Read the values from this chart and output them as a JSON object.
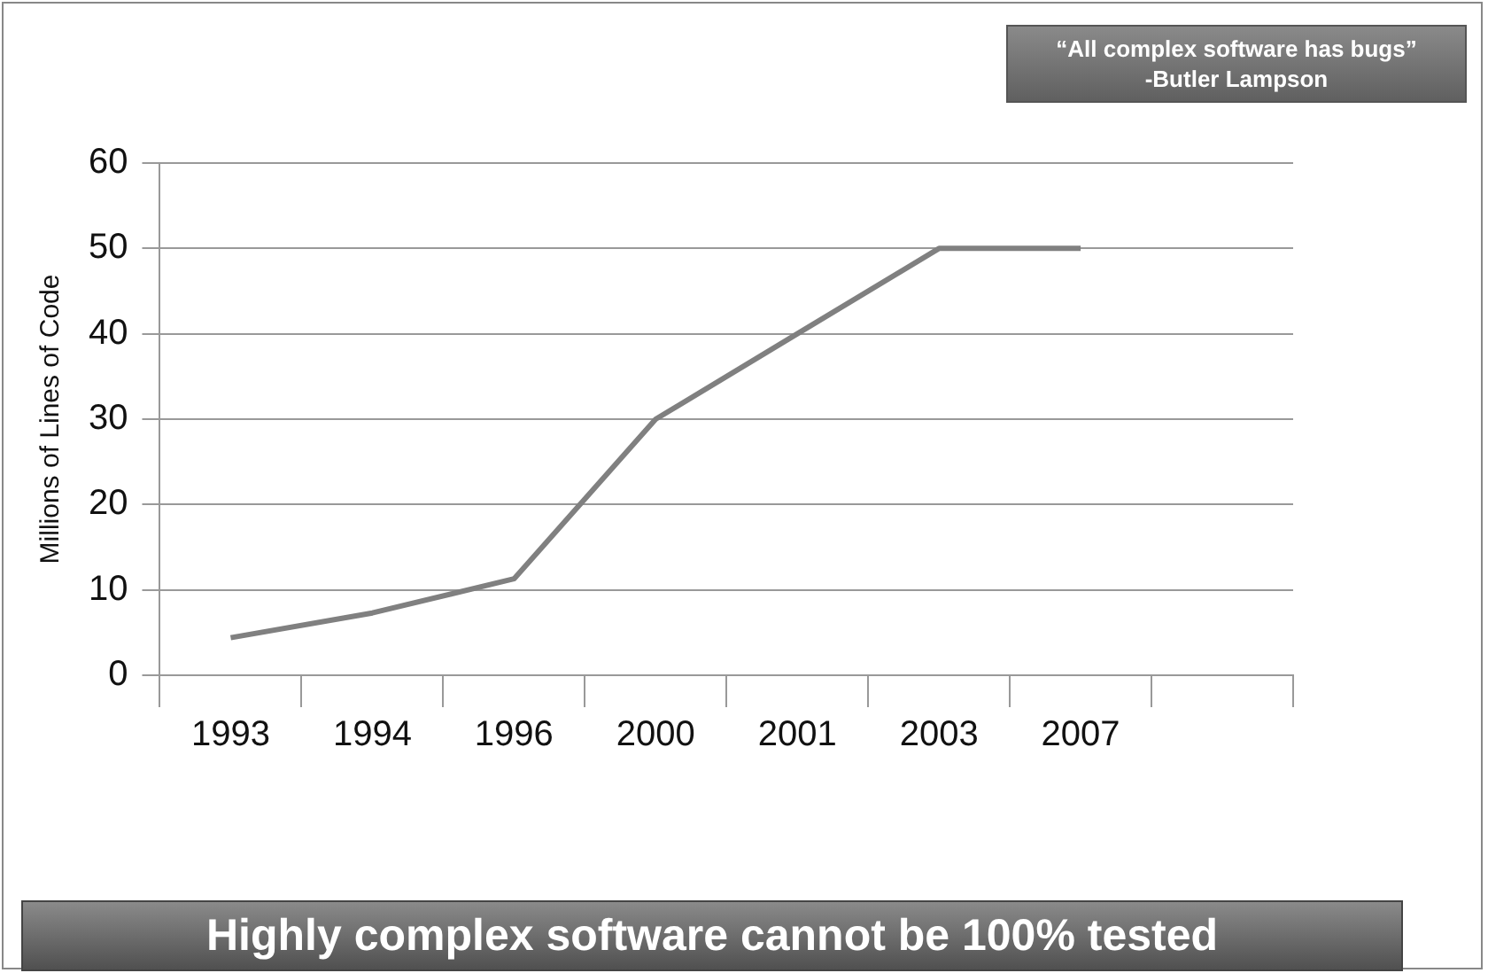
{
  "chart_data": {
    "type": "line",
    "ylabel": "Millions of Lines of Code",
    "categories": [
      "1993",
      "1994",
      "1996",
      "2000",
      "2001",
      "2003",
      "2007",
      null
    ],
    "values": [
      4.4,
      7.3,
      11.3,
      30,
      40,
      50,
      50,
      null
    ],
    "color": "#808080",
    "ylim": [
      0,
      60
    ],
    "yticks": [
      0,
      10,
      20,
      30,
      40,
      50,
      60
    ],
    "grid": "y",
    "annotations": [
      "“All complex software has bugs”\n-Butler Lampson",
      "Highly complex software cannot be 100% tested"
    ]
  }
}
